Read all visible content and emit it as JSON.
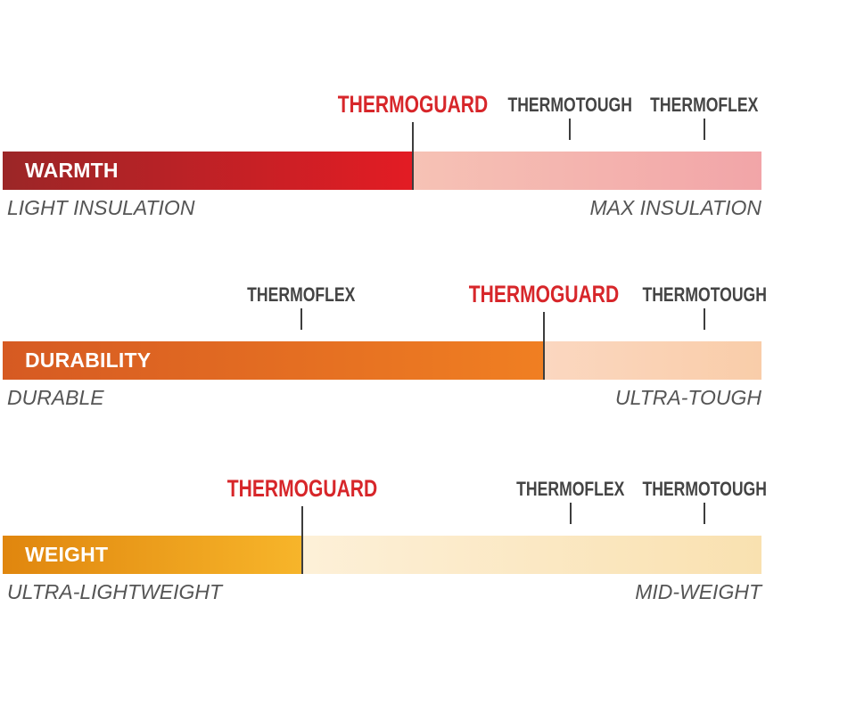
{
  "scales": [
    {
      "id": "warmth",
      "label": "WARMTH",
      "left_label": "LIGHT INSULATION",
      "right_label": "MAX INSULATION",
      "colors": {
        "fill_start": "#9b2627",
        "fill_end": "#e31c24",
        "rest_start": "#f6c2b5",
        "rest_end": "#f2a5a8"
      },
      "primary": {
        "name": "THERMOGUARD",
        "level": 0.54
      },
      "others": [
        {
          "name": "THERMOTOUGH",
          "level": 0.747
        },
        {
          "name": "THERMOFLEX",
          "level": 0.925
        }
      ]
    },
    {
      "id": "durability",
      "label": "DURABILITY",
      "left_label": "DURABLE",
      "right_label": "ULTRA-TOUGH",
      "colors": {
        "fill_start": "#d65a22",
        "fill_end": "#f07f22",
        "rest_start": "#fbd7c0",
        "rest_end": "#f9cda9"
      },
      "primary": {
        "name": "THERMOGUARD",
        "level": 0.713
      },
      "others": [
        {
          "name": "THERMOFLEX",
          "level": 0.394
        },
        {
          "name": "THERMOTOUGH",
          "level": 0.925
        }
      ]
    },
    {
      "id": "weight",
      "label": "WEIGHT",
      "left_label": "ULTRA-LIGHTWEIGHT",
      "right_label": "MID-WEIGHT",
      "colors": {
        "fill_start": "#e0860e",
        "fill_end": "#f7b52a",
        "rest_start": "#fdf0d8",
        "rest_end": "#f9e1b0"
      },
      "primary": {
        "name": "THERMOGUARD",
        "level": 0.395
      },
      "others": [
        {
          "name": "THERMOFLEX",
          "level": 0.748
        },
        {
          "name": "THERMOTOUGH",
          "level": 0.925
        }
      ]
    }
  ]
}
